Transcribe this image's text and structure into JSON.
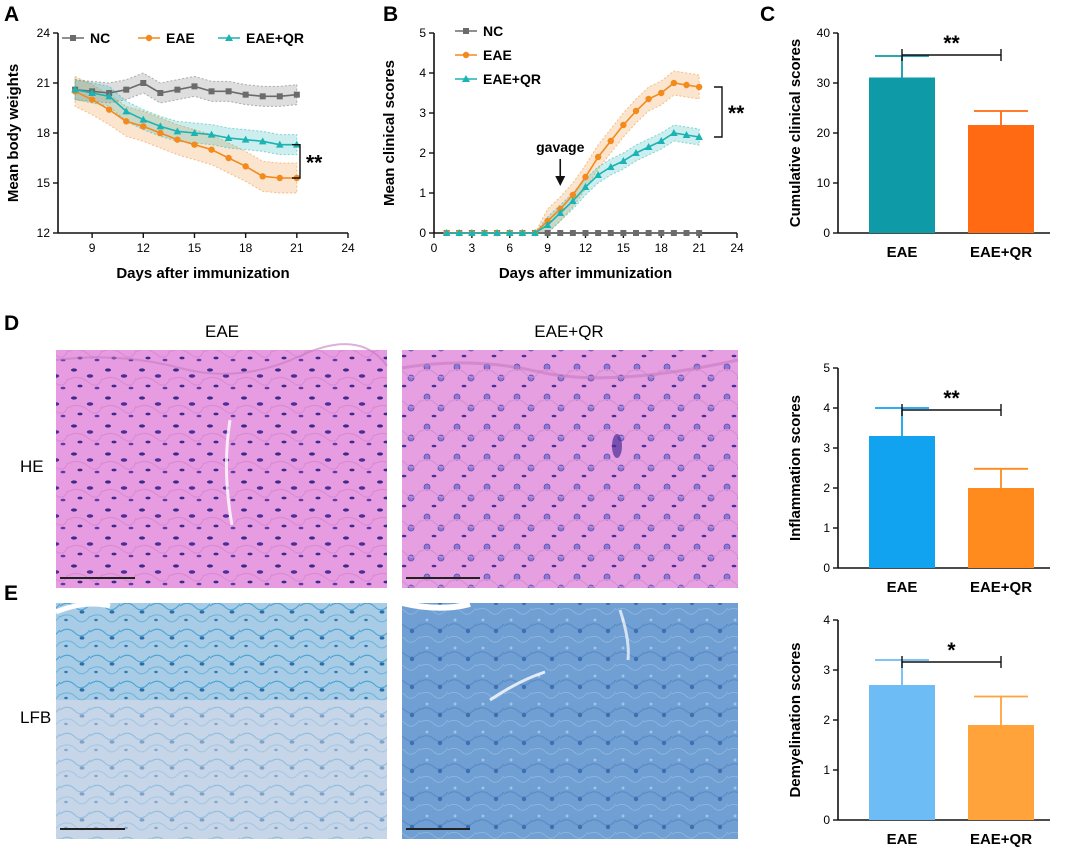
{
  "panels": {
    "a": "A",
    "b": "B",
    "c": "C",
    "d": "D",
    "e": "E"
  },
  "image_columns": [
    "EAE",
    "EAE+QR"
  ],
  "image_rows": [
    "HE",
    "LFB"
  ],
  "gavage_label": "gavage",
  "colors": {
    "NC": "#6b6b6b",
    "EAE": "#f28a1e",
    "EAEQR": "#1bb3b3",
    "barC1": "#0f9aa8",
    "barC2": "#ff6a13",
    "barD1": "#12a3f0",
    "barD2": "#ff8a1d",
    "barE1": "#6ebcf5",
    "barE2": "#ffa33a",
    "he": "#e49ad9",
    "lfb": "#7bb3e0"
  },
  "chart_data": [
    {
      "id": "A",
      "type": "line",
      "title": "",
      "xlabel": "Days after immunization",
      "ylabel": "Mean body weights",
      "xlim": [
        7,
        24
      ],
      "ylim": [
        12,
        24
      ],
      "xticks": [
        9,
        12,
        15,
        18,
        21,
        24
      ],
      "yticks": [
        12,
        15,
        18,
        21,
        24
      ],
      "x": [
        8,
        9,
        10,
        11,
        12,
        13,
        14,
        15,
        16,
        17,
        18,
        19,
        20,
        21
      ],
      "series": [
        {
          "name": "NC",
          "values": [
            20.6,
            20.5,
            20.4,
            20.6,
            21.0,
            20.4,
            20.6,
            20.8,
            20.5,
            20.5,
            20.3,
            20.2,
            20.2,
            20.3
          ],
          "band": 0.6
        },
        {
          "name": "EAE",
          "values": [
            20.5,
            20.0,
            19.4,
            18.7,
            18.4,
            18.0,
            17.6,
            17.3,
            17.0,
            16.5,
            16.0,
            15.4,
            15.3,
            15.3
          ],
          "band": 0.9
        },
        {
          "name": "EAE+QR",
          "values": [
            20.6,
            20.4,
            20.2,
            19.3,
            18.8,
            18.4,
            18.1,
            18.0,
            17.9,
            17.7,
            17.6,
            17.5,
            17.3,
            17.3
          ],
          "band": 0.6
        }
      ],
      "significance": "**"
    },
    {
      "id": "B",
      "type": "line",
      "title": "",
      "xlabel": "Days after immunization",
      "ylabel": "Mean clinical scores",
      "xlim": [
        0,
        24
      ],
      "ylim": [
        0,
        5
      ],
      "xticks": [
        0,
        3,
        6,
        9,
        12,
        15,
        18,
        21,
        24
      ],
      "yticks": [
        0,
        1,
        2,
        3,
        4,
        5
      ],
      "x": [
        1,
        2,
        3,
        4,
        5,
        6,
        7,
        8,
        9,
        10,
        11,
        12,
        13,
        14,
        15,
        16,
        17,
        18,
        19,
        20,
        21
      ],
      "series": [
        {
          "name": "NC",
          "values": [
            0,
            0,
            0,
            0,
            0,
            0,
            0,
            0,
            0,
            0,
            0,
            0,
            0,
            0,
            0,
            0,
            0,
            0,
            0,
            0,
            0
          ],
          "band": 0
        },
        {
          "name": "EAE",
          "values": [
            0,
            0,
            0,
            0,
            0,
            0,
            0,
            0,
            0.3,
            0.6,
            0.95,
            1.4,
            1.9,
            2.3,
            2.7,
            3.05,
            3.35,
            3.5,
            3.75,
            3.7,
            3.65
          ],
          "band": 0.3
        },
        {
          "name": "EAE+QR",
          "values": [
            0,
            0,
            0,
            0,
            0,
            0,
            0,
            0,
            0.2,
            0.5,
            0.8,
            1.15,
            1.45,
            1.65,
            1.8,
            2.0,
            2.15,
            2.3,
            2.5,
            2.45,
            2.4
          ],
          "band": 0.2
        }
      ],
      "annotation": "gavage",
      "annotation_x": 10,
      "significance": "**"
    },
    {
      "id": "C",
      "type": "bar",
      "title": "",
      "xlabel": "",
      "ylabel": "Cumulative clinical  scores",
      "categories": [
        "EAE",
        "EAE+QR"
      ],
      "values": [
        31.1,
        21.6
      ],
      "errors": [
        4.3,
        2.8
      ],
      "ylim": [
        0,
        40
      ],
      "yticks": [
        0,
        10,
        20,
        30,
        40
      ],
      "significance": "**"
    },
    {
      "id": "D",
      "type": "bar",
      "title": "",
      "xlabel": "",
      "ylabel": "Inflammation scores",
      "categories": [
        "EAE",
        "EAE+QR"
      ],
      "values": [
        3.3,
        2.0
      ],
      "errors": [
        0.7,
        0.48
      ],
      "ylim": [
        0,
        5
      ],
      "yticks": [
        0,
        1,
        2,
        3,
        4,
        5
      ],
      "significance": "**"
    },
    {
      "id": "E",
      "type": "bar",
      "title": "",
      "xlabel": "",
      "ylabel": "Demyelination scores",
      "categories": [
        "EAE",
        "EAE+QR"
      ],
      "values": [
        2.7,
        1.9
      ],
      "errors": [
        0.5,
        0.57
      ],
      "ylim": [
        0,
        4
      ],
      "yticks": [
        0,
        1,
        2,
        3,
        4
      ],
      "significance": "*"
    }
  ]
}
